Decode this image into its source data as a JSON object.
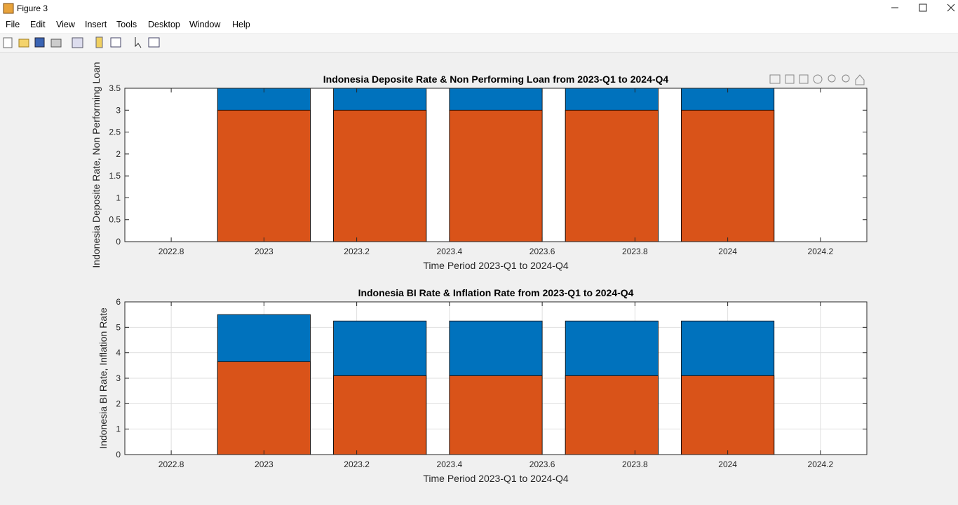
{
  "window": {
    "title": "Figure 3",
    "menu": [
      "File",
      "Edit",
      "View",
      "Insert",
      "Tools",
      "Desktop",
      "Window",
      "Help"
    ]
  },
  "chart_data": [
    {
      "type": "bar",
      "title": "Indonesia Deposite Rate & Non Performing Loan from 2023-Q1 to 2024-Q4",
      "xlabel": "Time Period 2023-Q1 to 2024-Q4",
      "ylabel": "Indonesia Deposite Rate, Non Performing Loan",
      "x": [
        2023,
        2023.25,
        2023.5,
        2023.75,
        2024
      ],
      "series": [
        {
          "color": "#0072bd",
          "values": [
            3.5,
            3.5,
            3.5,
            3.5,
            3.5
          ]
        },
        {
          "color": "#d95319",
          "values": [
            3,
            3,
            3,
            3,
            3
          ]
        }
      ],
      "xlim": [
        2022.7,
        2024.3
      ],
      "xticks": [
        2022.8,
        2023,
        2023.2,
        2023.4,
        2023.6,
        2023.8,
        2024,
        2024.2
      ],
      "ylim": [
        0,
        3.5
      ],
      "yticks": [
        0,
        0.5,
        1,
        1.5,
        2,
        2.5,
        3,
        3.5
      ],
      "grid": false
    },
    {
      "type": "bar",
      "title": "Indonesia BI Rate & Inflation Rate from 2023-Q1 to 2024-Q4",
      "xlabel": "Time Period 2023-Q1 to 2024-Q4",
      "ylabel": "Indonesia BI Rate, Inflation Rate",
      "x": [
        2023,
        2023.25,
        2023.5,
        2023.75,
        2024
      ],
      "series": [
        {
          "color": "#0072bd",
          "values": [
            5.5,
            5.25,
            5.25,
            5.25,
            5.25
          ]
        },
        {
          "color": "#d95319",
          "values": [
            3.65,
            3.1,
            3.1,
            3.1,
            3.1
          ]
        }
      ],
      "xlim": [
        2022.7,
        2024.3
      ],
      "xticks": [
        2022.8,
        2023,
        2023.2,
        2023.4,
        2023.6,
        2023.8,
        2024,
        2024.2
      ],
      "ylim": [
        0,
        6
      ],
      "yticks": [
        0,
        1,
        2,
        3,
        4,
        5,
        6
      ],
      "grid": true
    }
  ]
}
